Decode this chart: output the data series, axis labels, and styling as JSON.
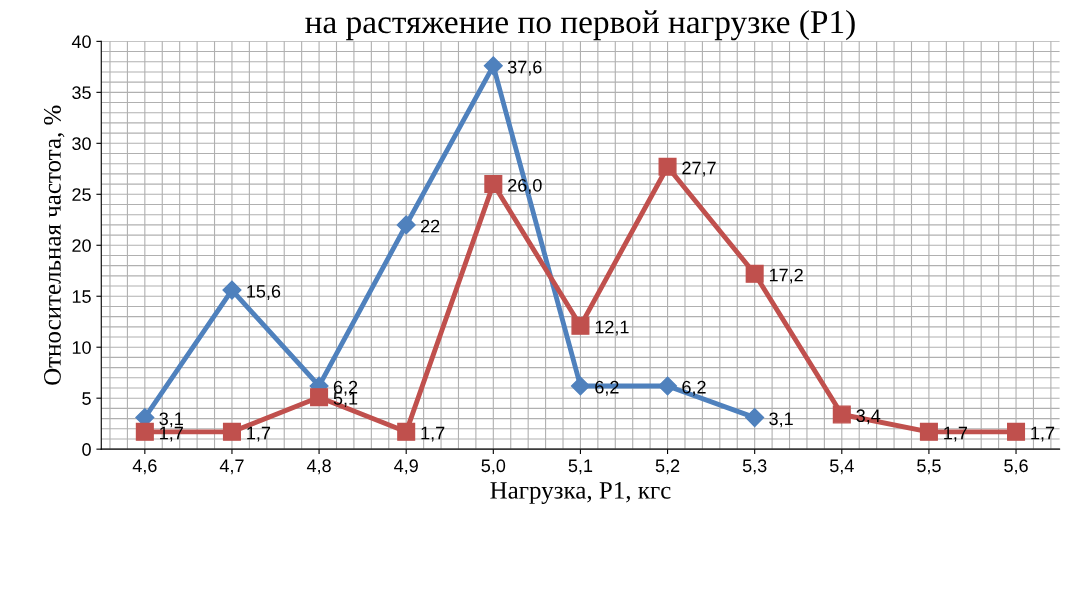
{
  "chart_data": {
    "type": "line",
    "title": "на растяжение по первой нагрузке (Р1)",
    "xlabel": "Нагрузка, Р1, кгс",
    "ylabel": "Относительная частота, %",
    "categories": [
      "4,6",
      "4,7",
      "4,8",
      "4,9",
      "5,0",
      "5,1",
      "5,2",
      "5,3",
      "5,4",
      "5,5",
      "5,6"
    ],
    "series": [
      {
        "color": "#4f81bd",
        "marker": "diamond",
        "values": [
          3.1,
          15.6,
          6.2,
          22,
          37.6,
          6.2,
          6.2,
          3.1,
          null,
          null,
          null
        ],
        "value_labels": [
          "3,1",
          "15,6",
          "6,2",
          "22",
          "37,6",
          "6,2",
          "6,2",
          "3,1",
          null,
          null,
          null
        ]
      },
      {
        "color": "#c0504d",
        "marker": "square",
        "values": [
          1.7,
          1.7,
          5.1,
          1.7,
          26.0,
          12.1,
          27.7,
          17.2,
          3.4,
          1.7,
          1.7
        ],
        "value_labels": [
          "1,7",
          "1,7",
          "5,1",
          "1,7",
          "26,0",
          "12,1",
          "27,7",
          "17,2",
          "3,4",
          "1,7",
          "1,7"
        ]
      }
    ],
    "ylim": [
      0,
      40
    ],
    "yticks": [
      0,
      5,
      10,
      15,
      20,
      25,
      30,
      35,
      40
    ],
    "grid": true,
    "line_style": "solid"
  }
}
